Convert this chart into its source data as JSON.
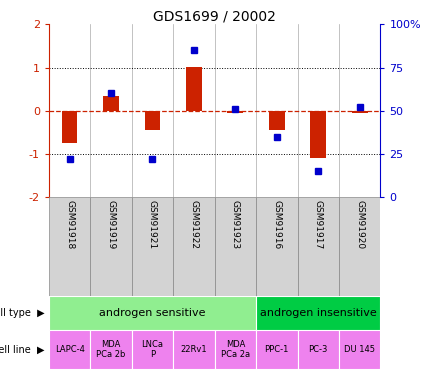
{
  "title": "GDS1699 / 20002",
  "samples": [
    "GSM91918",
    "GSM91919",
    "GSM91921",
    "GSM91922",
    "GSM91923",
    "GSM91916",
    "GSM91917",
    "GSM91920"
  ],
  "log2_ratio": [
    -0.75,
    0.35,
    -0.45,
    1.02,
    -0.05,
    -0.45,
    -1.1,
    -0.05
  ],
  "percentile_rank": [
    22,
    60,
    22,
    85,
    51,
    35,
    15,
    52
  ],
  "ylim_left": [
    -2,
    2
  ],
  "ylim_right": [
    0,
    100
  ],
  "cell_type_groups": [
    {
      "label": "androgen sensitive",
      "start": 0,
      "end": 4,
      "color": "#90EE90"
    },
    {
      "label": "androgen insensitive",
      "start": 5,
      "end": 7,
      "color": "#00CC44"
    }
  ],
  "cell_lines": [
    {
      "label": "LAPC-4",
      "col": 0
    },
    {
      "label": "MDA\nPCa 2b",
      "col": 1
    },
    {
      "label": "LNCa\nP",
      "col": 2
    },
    {
      "label": "22Rv1",
      "col": 3
    },
    {
      "label": "MDA\nPCa 2a",
      "col": 4
    },
    {
      "label": "PPC-1",
      "col": 5
    },
    {
      "label": "PC-3",
      "col": 6
    },
    {
      "label": "DU 145",
      "col": 7
    }
  ],
  "cell_line_color": "#EE82EE",
  "bar_color_red": "#CC2200",
  "bar_color_blue": "#0000CC",
  "grid_color": "#000000",
  "zero_line_color": "#CC2200",
  "left_axis_color": "#CC2200",
  "right_axis_color": "#0000CC",
  "sample_label_bg": "#D3D3D3",
  "sample_label_edge": "#888888"
}
